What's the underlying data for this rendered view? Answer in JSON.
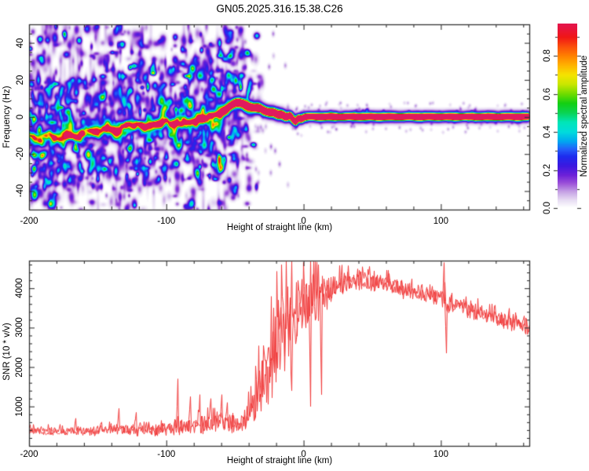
{
  "title": "GN05.2025.316.15.38.C26",
  "colors": {
    "background": "#ffffff",
    "axis": "#333333",
    "snr_line": "#f03c3c"
  },
  "colormap_stops": [
    [
      0.0,
      "#ffffff"
    ],
    [
      0.04,
      "#e7dcf3"
    ],
    [
      0.08,
      "#c9a8e6"
    ],
    [
      0.13,
      "#9a4fd8"
    ],
    [
      0.17,
      "#6e22d8"
    ],
    [
      0.22,
      "#3c18e0"
    ],
    [
      0.27,
      "#1e2cee"
    ],
    [
      0.31,
      "#2362fa"
    ],
    [
      0.35,
      "#00a8f0"
    ],
    [
      0.4,
      "#00dcdc"
    ],
    [
      0.45,
      "#00e6b9"
    ],
    [
      0.5,
      "#0ad455"
    ],
    [
      0.55,
      "#13cf13"
    ],
    [
      0.6,
      "#6fdc00"
    ],
    [
      0.65,
      "#c8e600"
    ],
    [
      0.7,
      "#f5e400"
    ],
    [
      0.75,
      "#ffb400"
    ],
    [
      0.8,
      "#ff8200"
    ],
    [
      0.85,
      "#fb4f0c"
    ],
    [
      0.9,
      "#f01616"
    ],
    [
      0.95,
      "#e71440"
    ],
    [
      1.0,
      "#e01a5e"
    ]
  ],
  "chart_data": [
    {
      "type": "heatmap",
      "title": "GN05.2025.316.15.38.C26",
      "xlabel": "Height of straight line (km)",
      "ylabel": "Frequency (Hz)",
      "xlim": [
        -200,
        165
      ],
      "ylim": [
        -50,
        50
      ],
      "xticks": [
        -200,
        -100,
        0,
        100
      ],
      "xtick_labels": [
        "-200",
        "-100",
        "0",
        "100"
      ],
      "x_minor_step": 20,
      "yticks": [
        -40,
        -20,
        0,
        20,
        40
      ],
      "ytick_labels": [
        "-40",
        "-20",
        "0",
        "20",
        "40"
      ],
      "y_minor_step": 5,
      "grid": false,
      "colorbar": {
        "label": "Normalized spectral amplitude",
        "range": [
          0.0,
          1.0
        ],
        "tick_values": [
          0.0,
          0.2,
          0.4,
          0.6,
          0.8
        ],
        "tick_labels": [
          "0.0",
          "0.2",
          "0.4",
          "0.6",
          "0.8"
        ],
        "minor_step": 0.1
      },
      "trace_points": [
        [
          -200,
          -9,
          0.35
        ],
        [
          -193,
          -13,
          0.3
        ],
        [
          -186,
          -8,
          0.38
        ],
        [
          -179,
          -12,
          0.32
        ],
        [
          -172,
          -9,
          0.4
        ],
        [
          -165,
          -11,
          0.35
        ],
        [
          -158,
          -7,
          0.42
        ],
        [
          -151,
          -9,
          0.38
        ],
        [
          -144,
          -5.5,
          0.4
        ],
        [
          -137,
          -7.5,
          0.42
        ],
        [
          -130,
          -5,
          0.45
        ],
        [
          -123,
          -3.5,
          0.45
        ],
        [
          -116,
          -5.5,
          0.42
        ],
        [
          -109,
          -4,
          0.48
        ],
        [
          -102,
          -2.5,
          0.5
        ],
        [
          -95,
          -4,
          0.48
        ],
        [
          -88,
          -2,
          0.5
        ],
        [
          -81,
          -3,
          0.52
        ],
        [
          -75,
          -1,
          0.55
        ],
        [
          -69,
          0.5,
          0.6
        ],
        [
          -63,
          1.5,
          0.62
        ],
        [
          -58,
          3.5,
          0.7
        ],
        [
          -53,
          6.5,
          0.85
        ],
        [
          -49,
          8.2,
          1.0
        ],
        [
          -45,
          7.6,
          0.95
        ],
        [
          -41,
          6,
          0.9
        ],
        [
          -37,
          5,
          0.95
        ],
        [
          -33,
          5.5,
          0.9
        ],
        [
          -29,
          3.5,
          0.95
        ],
        [
          -25,
          2.5,
          0.92
        ],
        [
          -22,
          3,
          0.95
        ],
        [
          -19,
          1,
          0.92
        ],
        [
          -16,
          2,
          0.95
        ],
        [
          -13,
          -0.5,
          0.92
        ],
        [
          -10,
          1.5,
          0.95
        ],
        [
          -8,
          -1.5,
          0.9
        ],
        [
          -6,
          -3,
          0.95
        ],
        [
          -4,
          0.5,
          0.92
        ],
        [
          -2,
          -1.5,
          0.95
        ],
        [
          0,
          0.3,
          0.95
        ],
        [
          10,
          0.3,
          0.92
        ],
        [
          30,
          0.3,
          0.95
        ],
        [
          50,
          0.3,
          0.9
        ],
        [
          70,
          0.3,
          0.95
        ],
        [
          90,
          0.3,
          0.93
        ],
        [
          110,
          0.3,
          0.96
        ],
        [
          130,
          0.3,
          0.94
        ],
        [
          150,
          0.3,
          0.96
        ],
        [
          165,
          0.3,
          0.97
        ]
      ],
      "noise_field": {
        "h_range": [
          -200,
          -45
        ],
        "amplitude_range": [
          0.05,
          0.45
        ],
        "description": "scattered purple speckle noise over full frequency band, fading out near -48 km"
      }
    },
    {
      "type": "line",
      "xlabel": "Height of straight line (km)",
      "ylabel": "SNR (10 * v/v)",
      "xlim": [
        -200,
        165
      ],
      "ylim": [
        0,
        4700
      ],
      "xticks": [
        -200,
        -100,
        0,
        100
      ],
      "xtick_labels": [
        "-200",
        "-100",
        "0",
        "100"
      ],
      "x_minor_step": 20,
      "yticks": [
        1000,
        2000,
        3000,
        4000
      ],
      "ytick_labels": [
        "1000",
        "2000",
        "3000",
        "4000"
      ],
      "y_minor_step": 200,
      "grid": false,
      "profile_points": [
        [
          -200,
          380,
          140
        ],
        [
          -180,
          370,
          130
        ],
        [
          -160,
          380,
          140
        ],
        [
          -150,
          390,
          150
        ],
        [
          -140,
          400,
          160
        ],
        [
          -130,
          420,
          180
        ],
        [
          -120,
          400,
          160
        ],
        [
          -110,
          400,
          170
        ],
        [
          -100,
          430,
          200
        ],
        [
          -90,
          480,
          260
        ],
        [
          -80,
          520,
          300
        ],
        [
          -70,
          560,
          330
        ],
        [
          -62,
          580,
          330
        ],
        [
          -55,
          560,
          300
        ],
        [
          -50,
          540,
          260
        ],
        [
          -45,
          600,
          300
        ],
        [
          -42,
          700,
          400
        ],
        [
          -38,
          900,
          600
        ],
        [
          -34,
          1300,
          900
        ],
        [
          -30,
          1700,
          1100
        ],
        [
          -26,
          2100,
          1300
        ],
        [
          -22,
          2400,
          1400
        ],
        [
          -18,
          2700,
          1500
        ],
        [
          -14,
          2900,
          1400
        ],
        [
          -10,
          3100,
          1300
        ],
        [
          -6,
          3300,
          1100
        ],
        [
          -2,
          3500,
          900
        ],
        [
          2,
          3600,
          800
        ],
        [
          6,
          3700,
          900
        ],
        [
          10,
          3800,
          700
        ],
        [
          15,
          3900,
          600
        ],
        [
          20,
          4050,
          450
        ],
        [
          30,
          4150,
          350
        ],
        [
          40,
          4200,
          320
        ],
        [
          50,
          4150,
          320
        ],
        [
          60,
          4100,
          300
        ],
        [
          70,
          4000,
          300
        ],
        [
          80,
          3950,
          300
        ],
        [
          90,
          3850,
          280
        ],
        [
          100,
          3750,
          300
        ],
        [
          105,
          3650,
          350
        ],
        [
          110,
          3600,
          280
        ],
        [
          120,
          3450,
          260
        ],
        [
          130,
          3350,
          260
        ],
        [
          140,
          3250,
          250
        ],
        [
          150,
          3150,
          250
        ],
        [
          158,
          3100,
          260
        ],
        [
          165,
          3050,
          280
        ]
      ],
      "spikes": [
        [
          -166,
          700
        ],
        [
          -135,
          950
        ],
        [
          -122,
          850
        ],
        [
          -92,
          1700
        ],
        [
          -83,
          1250
        ],
        [
          -76,
          1300
        ],
        [
          -68,
          1200
        ],
        [
          -60,
          1300
        ],
        [
          -56,
          1100
        ],
        [
          -9,
          1400
        ],
        [
          5,
          1000
        ],
        [
          13,
          1300
        ],
        [
          102,
          4650
        ],
        [
          103.5,
          2350
        ]
      ]
    }
  ]
}
